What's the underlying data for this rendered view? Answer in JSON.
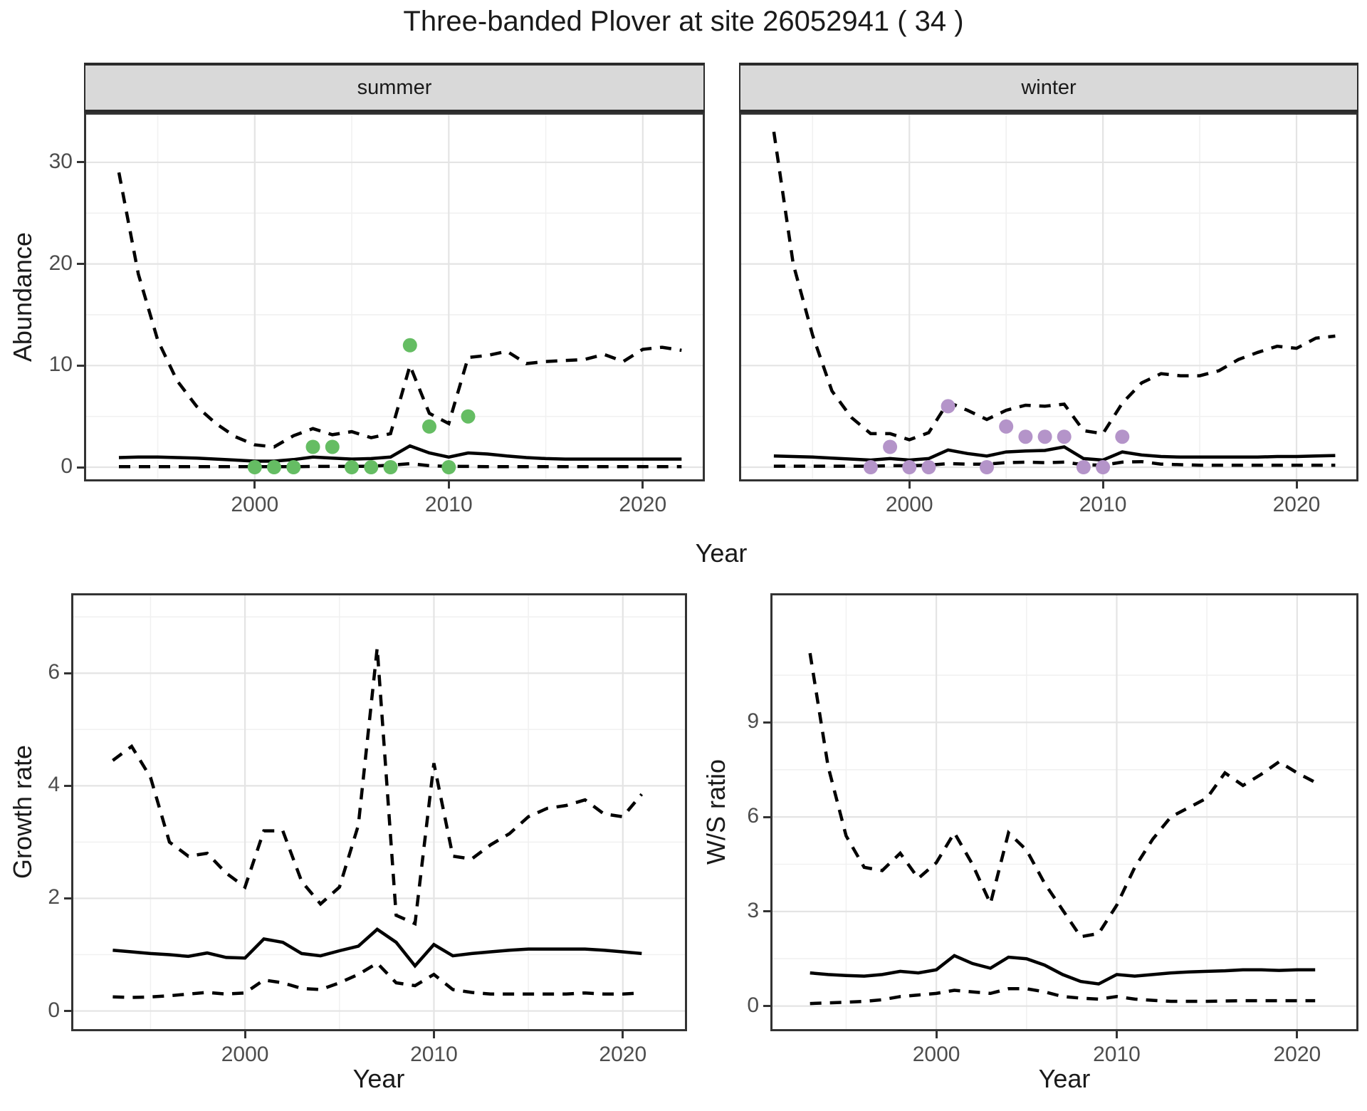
{
  "title": "Three-banded Plover at site 26052941 ( 34 )",
  "facets": [
    {
      "label": "summer"
    },
    {
      "label": "winter"
    }
  ],
  "axes": {
    "abundance_label": "Abundance",
    "growth_label": "Growth rate",
    "ws_label": "W/S ratio",
    "year_label_top": "Year",
    "year_label_growth": "Year",
    "year_label_ws": "Year"
  },
  "colors": {
    "summer_point": "#65bd63",
    "winter_point": "#b494c9",
    "line": "#000000",
    "strip_bg": "#d9d9d9",
    "grid_major": "#e4e4e4",
    "grid_minor": "#f1f1f1",
    "panel_border": "#333333",
    "axis_text": "#4d4d4d"
  },
  "chart_data": [
    {
      "id": "abundance_summer",
      "type": "line",
      "facet": "summer",
      "ylabel": "Abundance",
      "xlabel": "Year",
      "xlim": [
        1991.2,
        2023.2
      ],
      "ylim": [
        -1.4,
        34.9
      ],
      "xticks": [
        2000,
        2010,
        2020
      ],
      "yticks": [
        0,
        10,
        20,
        30
      ],
      "xminor": [
        1995,
        2005,
        2015
      ],
      "yminor": [
        5,
        15,
        25
      ],
      "x": [
        1993,
        1994,
        1995,
        1996,
        1997,
        1998,
        1999,
        2000,
        2001,
        2002,
        2003,
        2004,
        2005,
        2006,
        2007,
        2008,
        2009,
        2010,
        2011,
        2012,
        2013,
        2014,
        2015,
        2016,
        2017,
        2018,
        2019,
        2020,
        2021,
        2022
      ],
      "series": [
        {
          "name": "upper-95ci",
          "style": "dashed",
          "values": [
            29,
            19,
            12.5,
            8.5,
            6,
            4.3,
            3,
            2.2,
            2,
            3.1,
            3.8,
            3.2,
            3.5,
            2.9,
            3.3,
            10,
            5.3,
            4.3,
            10.8,
            11,
            11.4,
            10.2,
            10.4,
            10.5,
            10.6,
            11.1,
            10.4,
            11.6,
            11.8,
            11.5
          ]
        },
        {
          "name": "median",
          "style": "solid",
          "values": [
            0.95,
            1,
            1,
            0.95,
            0.9,
            0.8,
            0.7,
            0.6,
            0.6,
            0.75,
            1,
            0.9,
            0.8,
            0.85,
            1,
            2.1,
            1.4,
            1,
            1.4,
            1.3,
            1.1,
            0.95,
            0.85,
            0.8,
            0.8,
            0.8,
            0.8,
            0.8,
            0.8,
            0.8
          ]
        },
        {
          "name": "lower-95ci",
          "style": "dashed",
          "values": [
            0.05,
            0.05,
            0.05,
            0.05,
            0.05,
            0.05,
            0.05,
            0.05,
            0.05,
            0.05,
            0.08,
            0.08,
            0.08,
            0.1,
            0.2,
            0.35,
            0.15,
            0.08,
            0.08,
            0.05,
            0.05,
            0.05,
            0.05,
            0.05,
            0.05,
            0.05,
            0.05,
            0.05,
            0.05,
            0.05
          ]
        }
      ],
      "points": {
        "name": "observed-summer-counts",
        "color": "#65bd63",
        "x": [
          2000,
          2001,
          2002,
          2003,
          2004,
          2005,
          2006,
          2007,
          2008,
          2009,
          2010,
          2011
        ],
        "y": [
          0,
          0,
          0,
          2,
          2,
          0,
          0,
          0,
          12,
          4,
          0,
          5
        ]
      }
    },
    {
      "id": "abundance_winter",
      "type": "line",
      "facet": "winter",
      "ylabel": "Abundance",
      "xlabel": "Year",
      "xlim": [
        1991.2,
        2023.2
      ],
      "ylim": [
        -1.4,
        34.9
      ],
      "xticks": [
        2000,
        2010,
        2020
      ],
      "yticks": [
        0,
        10,
        20,
        30
      ],
      "xminor": [
        1995,
        2005,
        2015
      ],
      "yminor": [
        5,
        15,
        25
      ],
      "x": [
        1993,
        1994,
        1995,
        1996,
        1997,
        1998,
        1999,
        2000,
        2001,
        2002,
        2003,
        2004,
        2005,
        2006,
        2007,
        2008,
        2009,
        2010,
        2011,
        2012,
        2013,
        2014,
        2015,
        2016,
        2017,
        2018,
        2019,
        2020,
        2021,
        2022
      ],
      "series": [
        {
          "name": "upper-95ci",
          "style": "dashed",
          "values": [
            33,
            20,
            13,
            7.5,
            4.9,
            3.3,
            3.3,
            2.7,
            3.4,
            6.4,
            5.6,
            4.7,
            5.6,
            6.1,
            6,
            6.2,
            3.6,
            3.3,
            6.3,
            8.3,
            9.2,
            9,
            9,
            9.5,
            10.6,
            11.3,
            11.9,
            11.7,
            12.7,
            12.9
          ]
        },
        {
          "name": "median",
          "style": "solid",
          "values": [
            1.1,
            1.05,
            1,
            0.9,
            0.8,
            0.7,
            0.85,
            0.7,
            0.85,
            1.7,
            1.35,
            1.1,
            1.5,
            1.6,
            1.65,
            2,
            0.85,
            0.7,
            1.5,
            1.2,
            1.05,
            1,
            1,
            1,
            1,
            1,
            1.05,
            1.05,
            1.1,
            1.15
          ]
        },
        {
          "name": "lower-95ci",
          "style": "dashed",
          "values": [
            0.1,
            0.1,
            0.1,
            0.1,
            0.1,
            0.1,
            0.15,
            0.15,
            0.2,
            0.35,
            0.3,
            0.3,
            0.45,
            0.5,
            0.45,
            0.5,
            0.25,
            0.2,
            0.5,
            0.55,
            0.3,
            0.25,
            0.2,
            0.2,
            0.2,
            0.2,
            0.2,
            0.2,
            0.2,
            0.2
          ]
        }
      ],
      "points": {
        "name": "observed-winter-counts",
        "color": "#b494c9",
        "x": [
          1998,
          1999,
          2000,
          2001,
          2002,
          2004,
          2005,
          2006,
          2007,
          2008,
          2009,
          2010,
          2011
        ],
        "y": [
          0,
          2,
          0,
          0,
          6,
          0,
          4,
          3,
          3,
          3,
          0,
          0,
          3
        ]
      }
    },
    {
      "id": "growth_rate",
      "type": "line",
      "facet": "",
      "ylabel": "Growth rate",
      "xlabel": "Year",
      "xlim": [
        1990.8,
        2023.4
      ],
      "ylim": [
        -0.36,
        7.42
      ],
      "xticks": [
        2000,
        2010,
        2020
      ],
      "yticks": [
        0,
        2,
        4,
        6
      ],
      "xminor": [
        1995,
        2005,
        2015
      ],
      "yminor": [
        1,
        3,
        5,
        7
      ],
      "x": [
        1993,
        1994,
        1995,
        1996,
        1997,
        1998,
        1999,
        2000,
        2001,
        2002,
        2003,
        2004,
        2005,
        2006,
        2007,
        2008,
        2009,
        2010,
        2011,
        2012,
        2013,
        2014,
        2015,
        2016,
        2017,
        2018,
        2019,
        2020,
        2021
      ],
      "series": [
        {
          "name": "upper-95ci",
          "style": "dashed",
          "values": [
            4.45,
            4.7,
            4.15,
            3,
            2.75,
            2.8,
            2.45,
            2.2,
            3.2,
            3.2,
            2.3,
            1.9,
            2.2,
            3.3,
            6.45,
            1.7,
            1.55,
            4.4,
            2.75,
            2.7,
            2.95,
            3.15,
            3.45,
            3.6,
            3.65,
            3.75,
            3.5,
            3.45,
            3.85
          ]
        },
        {
          "name": "median",
          "style": "solid",
          "values": [
            1.08,
            1.05,
            1.02,
            1,
            0.97,
            1.03,
            0.95,
            0.94,
            1.28,
            1.22,
            1.02,
            0.98,
            1.07,
            1.15,
            1.45,
            1.22,
            0.8,
            1.18,
            0.98,
            1.02,
            1.05,
            1.08,
            1.1,
            1.1,
            1.1,
            1.1,
            1.08,
            1.05,
            1.02
          ]
        },
        {
          "name": "lower-95ci",
          "style": "dashed",
          "values": [
            0.25,
            0.24,
            0.25,
            0.27,
            0.3,
            0.33,
            0.3,
            0.32,
            0.55,
            0.5,
            0.4,
            0.38,
            0.5,
            0.65,
            0.85,
            0.5,
            0.45,
            0.65,
            0.38,
            0.33,
            0.3,
            0.3,
            0.3,
            0.3,
            0.3,
            0.32,
            0.3,
            0.3,
            0.32
          ]
        }
      ],
      "points": null
    },
    {
      "id": "ws_ratio",
      "type": "line",
      "facet": "",
      "ylabel": "W/S ratio",
      "xlabel": "Year",
      "xlim": [
        1990.8,
        2023.4
      ],
      "ylim": [
        -0.8,
        13.1
      ],
      "xticks": [
        2000,
        2010,
        2020
      ],
      "yticks": [
        0,
        3,
        6,
        9
      ],
      "xminor": [
        1995,
        2005,
        2015
      ],
      "yminor": [
        1.5,
        4.5,
        7.5,
        10.5
      ],
      "x": [
        1993,
        1994,
        1995,
        1996,
        1997,
        1998,
        1999,
        2000,
        2001,
        2002,
        2003,
        2004,
        2005,
        2006,
        2007,
        2008,
        2009,
        2010,
        2011,
        2012,
        2013,
        2014,
        2015,
        2016,
        2017,
        2018,
        2019,
        2020,
        2021
      ],
      "series": [
        {
          "name": "upper-95ci",
          "style": "dashed",
          "values": [
            11.2,
            7.6,
            5.4,
            4.4,
            4.3,
            4.85,
            4.05,
            4.55,
            5.5,
            4.5,
            3.25,
            5.5,
            4.95,
            3.9,
            3.05,
            2.2,
            2.3,
            3.2,
            4.4,
            5.3,
            6,
            6.3,
            6.6,
            7.4,
            7,
            7.35,
            7.75,
            7.4,
            7.1
          ]
        },
        {
          "name": "median",
          "style": "solid",
          "values": [
            1.05,
            1,
            0.97,
            0.95,
            1,
            1.1,
            1.05,
            1.15,
            1.6,
            1.35,
            1.2,
            1.55,
            1.5,
            1.3,
            1,
            0.78,
            0.7,
            1,
            0.95,
            1,
            1.05,
            1.08,
            1.1,
            1.12,
            1.15,
            1.15,
            1.13,
            1.15,
            1.15
          ]
        },
        {
          "name": "lower-95ci",
          "style": "dashed",
          "values": [
            0.08,
            0.1,
            0.12,
            0.15,
            0.2,
            0.3,
            0.35,
            0.4,
            0.5,
            0.45,
            0.4,
            0.55,
            0.55,
            0.45,
            0.3,
            0.25,
            0.22,
            0.3,
            0.22,
            0.18,
            0.15,
            0.15,
            0.15,
            0.16,
            0.17,
            0.17,
            0.17,
            0.17,
            0.17
          ]
        }
      ],
      "points": null
    }
  ]
}
